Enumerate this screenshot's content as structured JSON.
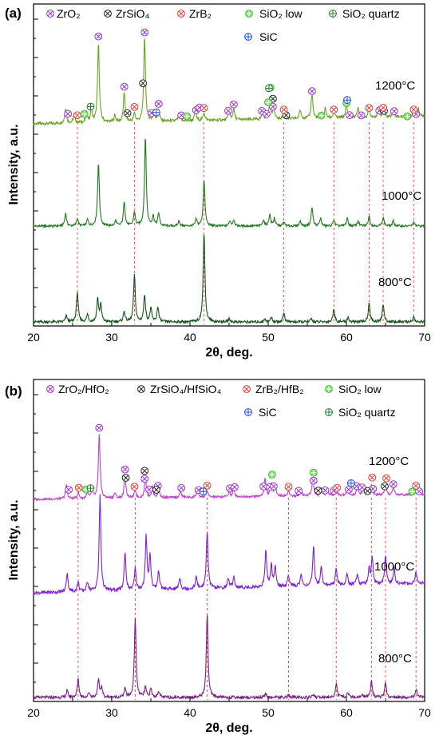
{
  "chart_data": [
    {
      "type": "line",
      "panel_label": "(a)",
      "xlabel": "2θ, deg.",
      "ylabel": "Intensity, a.u.",
      "xlim": [
        20,
        70
      ],
      "xticks": [
        "20",
        "30",
        "40",
        "50",
        "60",
        "70"
      ],
      "grid": false,
      "legend_position": "top",
      "colors": {
        "1200": "#6aa521",
        "1000": "#1f7a1f",
        "800": "#17541a"
      },
      "legend": [
        {
          "symbol": "zro2",
          "label": "ZrO₂"
        },
        {
          "symbol": "zrsio4",
          "label": "ZrSiO₄"
        },
        {
          "symbol": "zrb2",
          "label": "ZrB₂"
        },
        {
          "symbol": "sio2low",
          "label": "SiO₂ low"
        },
        {
          "symbol": "sio2q",
          "label": "SiO₂ quartz"
        },
        {
          "symbol": "sic",
          "label": "SiC"
        }
      ],
      "reference_lines": [
        25.6,
        32.9,
        41.8,
        52.0,
        58.4,
        62.9,
        64.7,
        68.6
      ],
      "series": [
        {
          "name": "1200°C",
          "baseline": 0.0,
          "peaks": [
            [
              24.1,
              0.18
            ],
            [
              25.2,
              0.1
            ],
            [
              26.8,
              0.12
            ],
            [
              27.4,
              0.15
            ],
            [
              28.3,
              0.95
            ],
            [
              30.4,
              0.08
            ],
            [
              31.6,
              0.35
            ],
            [
              32.9,
              0.1
            ],
            [
              34.2,
              1.0
            ],
            [
              35.4,
              0.12
            ],
            [
              36.0,
              0.14
            ],
            [
              38.6,
              0.08
            ],
            [
              40.7,
              0.12
            ],
            [
              41.8,
              0.1
            ],
            [
              45.0,
              0.1
            ],
            [
              45.6,
              0.14
            ],
            [
              49.3,
              0.1
            ],
            [
              50.2,
              0.22
            ],
            [
              50.7,
              0.15
            ],
            [
              52.0,
              0.08
            ],
            [
              54.1,
              0.1
            ],
            [
              55.6,
              0.3
            ],
            [
              57.3,
              0.12
            ],
            [
              58.4,
              0.08
            ],
            [
              60.0,
              0.16
            ],
            [
              61.5,
              0.12
            ],
            [
              62.9,
              0.1
            ],
            [
              64.1,
              0.1
            ],
            [
              64.7,
              0.1
            ],
            [
              66.0,
              0.1
            ],
            [
              68.6,
              0.08
            ],
            [
              69.2,
              0.1
            ]
          ]
        },
        {
          "name": "1000°C",
          "baseline": 0.0,
          "peaks": [
            [
              24.1,
              0.2
            ],
            [
              25.6,
              0.12
            ],
            [
              26.9,
              0.1
            ],
            [
              28.3,
              1.0
            ],
            [
              30.5,
              0.08
            ],
            [
              31.6,
              0.38
            ],
            [
              32.9,
              0.22
            ],
            [
              34.3,
              1.4
            ],
            [
              35.3,
              0.15
            ],
            [
              36.0,
              0.2
            ],
            [
              38.6,
              0.08
            ],
            [
              40.8,
              0.1
            ],
            [
              41.8,
              0.72
            ],
            [
              45.1,
              0.08
            ],
            [
              45.6,
              0.1
            ],
            [
              49.4,
              0.1
            ],
            [
              50.2,
              0.18
            ],
            [
              50.8,
              0.12
            ],
            [
              52.0,
              0.06
            ],
            [
              54.1,
              0.08
            ],
            [
              55.6,
              0.3
            ],
            [
              56.7,
              0.12
            ],
            [
              58.4,
              0.1
            ],
            [
              60.1,
              0.12
            ],
            [
              61.5,
              0.08
            ],
            [
              62.9,
              0.16
            ],
            [
              64.7,
              0.14
            ],
            [
              66.0,
              0.08
            ],
            [
              68.6,
              0.06
            ]
          ]
        },
        {
          "name": "800°C",
          "baseline": 0.0,
          "peaks": [
            [
              24.2,
              0.08
            ],
            [
              25.6,
              0.4
            ],
            [
              26.9,
              0.1
            ],
            [
              28.2,
              0.3
            ],
            [
              28.6,
              0.22
            ],
            [
              31.6,
              0.14
            ],
            [
              32.9,
              0.62
            ],
            [
              34.2,
              0.36
            ],
            [
              35.0,
              0.18
            ],
            [
              35.9,
              0.2
            ],
            [
              41.8,
              1.2
            ],
            [
              45.0,
              0.04
            ],
            [
              49.6,
              0.04
            ],
            [
              50.4,
              0.06
            ],
            [
              52.0,
              0.12
            ],
            [
              55.5,
              0.04
            ],
            [
              58.4,
              0.18
            ],
            [
              60.2,
              0.06
            ],
            [
              62.9,
              0.26
            ],
            [
              64.7,
              0.24
            ],
            [
              68.6,
              0.07
            ]
          ]
        }
      ],
      "markers": [
        {
          "symbol": "zro2",
          "x": [
            24.4,
            28.3,
            31.6,
            34.2,
            35.1,
            36.0,
            38.9,
            40.8,
            41.2,
            44.9,
            45.6,
            49.2,
            49.8,
            50.6,
            55.6,
            60.4,
            61.9,
            64.2,
            66.1,
            68.9
          ]
        },
        {
          "symbol": "zrsio4",
          "x": [
            32.0,
            34.0,
            50.6,
            52.3,
            64.8
          ]
        },
        {
          "symbol": "zrb2",
          "x": [
            25.6,
            32.9,
            41.8,
            52.0,
            58.4,
            62.9,
            64.7,
            68.6
          ]
        },
        {
          "symbol": "sio2low",
          "x": [
            26.5,
            39.6,
            50.0,
            50.3,
            56.8,
            60.0,
            67.8
          ]
        },
        {
          "symbol": "sio2q",
          "x": [
            27.3,
            50.1
          ]
        },
        {
          "symbol": "sic",
          "x": [
            35.7,
            60.1
          ]
        }
      ],
      "curve_labels": [
        "1200°C",
        "1000°C",
        "800°C"
      ]
    },
    {
      "type": "line",
      "panel_label": "(b)",
      "xlabel": "2θ, deg.",
      "ylabel": "Intensity, a.u.",
      "xlim": [
        20,
        70
      ],
      "xticks": [
        "20",
        "30",
        "40",
        "50",
        "60",
        "70"
      ],
      "grid": false,
      "legend_position": "top",
      "colors": {
        "1200": "#c13fd0",
        "1000": "#7c22d8",
        "800": "#7a1f8a"
      },
      "legend": [
        {
          "symbol": "zro2",
          "label": "ZrO₂/HfO₂"
        },
        {
          "symbol": "zrsio4",
          "label": "ZrSiO₄/HfSiO₄"
        },
        {
          "symbol": "zrb2",
          "label": "ZrB₂/HfB₂"
        },
        {
          "symbol": "sio2low",
          "label": "SiO₂ low"
        },
        {
          "symbol": "sic",
          "label": "SiC"
        },
        {
          "symbol": "sio2q",
          "label": "SiO₂ quartz"
        }
      ],
      "reference_lines": [
        25.7,
        33.0,
        42.2,
        52.6,
        58.7,
        63.2,
        65.0,
        68.9
      ],
      "series": [
        {
          "name": "1200°C",
          "baseline": 0.0,
          "peaks": [
            [
              24.2,
              0.22
            ],
            [
              25.7,
              0.1
            ],
            [
              26.9,
              0.1
            ],
            [
              27.5,
              0.12
            ],
            [
              28.4,
              1.0
            ],
            [
              30.4,
              0.08
            ],
            [
              31.7,
              0.35
            ],
            [
              33.0,
              0.12
            ],
            [
              34.3,
              0.32
            ],
            [
              35.2,
              0.18
            ],
            [
              36.0,
              0.14
            ],
            [
              38.8,
              0.1
            ],
            [
              40.9,
              0.1
            ],
            [
              42.2,
              0.1
            ],
            [
              45.0,
              0.08
            ],
            [
              45.6,
              0.12
            ],
            [
              49.6,
              0.28
            ],
            [
              50.4,
              0.2
            ],
            [
              50.9,
              0.18
            ],
            [
              52.6,
              0.08
            ],
            [
              54.2,
              0.1
            ],
            [
              55.7,
              0.28
            ],
            [
              56.8,
              0.12
            ],
            [
              57.6,
              0.1
            ],
            [
              58.7,
              0.1
            ],
            [
              60.1,
              0.12
            ],
            [
              61.4,
              0.14
            ],
            [
              62.1,
              0.1
            ],
            [
              63.2,
              0.16
            ],
            [
              65.0,
              0.14
            ],
            [
              66.0,
              0.12
            ],
            [
              68.9,
              0.1
            ]
          ]
        },
        {
          "name": "1000°C",
          "baseline": 0.0,
          "peaks": [
            [
              24.3,
              0.2
            ],
            [
              25.7,
              0.1
            ],
            [
              26.9,
              0.1
            ],
            [
              28.5,
              1.0
            ],
            [
              31.7,
              0.4
            ],
            [
              33.0,
              0.22
            ],
            [
              34.4,
              0.55
            ],
            [
              34.9,
              0.35
            ],
            [
              36.0,
              0.2
            ],
            [
              38.7,
              0.12
            ],
            [
              40.8,
              0.12
            ],
            [
              42.2,
              0.6
            ],
            [
              44.9,
              0.1
            ],
            [
              45.6,
              0.12
            ],
            [
              49.7,
              0.38
            ],
            [
              50.4,
              0.22
            ],
            [
              50.9,
              0.2
            ],
            [
              52.6,
              0.12
            ],
            [
              54.2,
              0.12
            ],
            [
              55.8,
              0.4
            ],
            [
              56.8,
              0.2
            ],
            [
              58.7,
              0.18
            ],
            [
              60.1,
              0.12
            ],
            [
              61.4,
              0.12
            ],
            [
              62.9,
              0.16
            ],
            [
              63.3,
              0.28
            ],
            [
              65.0,
              0.3
            ],
            [
              66.1,
              0.16
            ],
            [
              68.9,
              0.12
            ]
          ]
        },
        {
          "name": "800°C",
          "baseline": 0.0,
          "peaks": [
            [
              24.3,
              0.08
            ],
            [
              25.7,
              0.22
            ],
            [
              27.1,
              0.06
            ],
            [
              28.3,
              0.2
            ],
            [
              28.7,
              0.12
            ],
            [
              31.7,
              0.1
            ],
            [
              33.0,
              0.95
            ],
            [
              34.3,
              0.12
            ],
            [
              35.0,
              0.1
            ],
            [
              36.0,
              0.08
            ],
            [
              42.2,
              1.0
            ],
            [
              49.7,
              0.04
            ],
            [
              52.6,
              0.03
            ],
            [
              55.8,
              0.04
            ],
            [
              58.7,
              0.17
            ],
            [
              60.2,
              0.06
            ],
            [
              62.0,
              0.04
            ],
            [
              63.2,
              0.2
            ],
            [
              65.0,
              0.17
            ],
            [
              68.9,
              0.1
            ]
          ]
        }
      ],
      "markers": [
        {
          "symbol": "zro2",
          "x": [
            24.5,
            28.4,
            31.7,
            34.2,
            34.8,
            35.9,
            38.9,
            41.1,
            45.1,
            45.7,
            49.4,
            50.2,
            50.7,
            53.9,
            55.8,
            57.3,
            58.4,
            60.3,
            61.3,
            62.0,
            63.4,
            66.0,
            69.3
          ]
        },
        {
          "symbol": "zrsio4",
          "x": [
            31.8,
            34.2,
            35.7,
            56.4,
            62.7,
            64.9
          ]
        },
        {
          "symbol": "zrb2",
          "x": [
            25.8,
            32.9,
            42.2,
            52.6,
            58.8,
            63.3,
            65.1,
            68.9
          ]
        },
        {
          "symbol": "sio2low",
          "x": [
            26.7,
            50.5,
            55.8,
            68.4
          ]
        },
        {
          "symbol": "sio2q",
          "x": [
            27.3
          ]
        },
        {
          "symbol": "sic",
          "x": [
            41.7,
            60.6
          ]
        }
      ],
      "curve_labels": [
        "1200°C",
        "1000°C",
        "800°C"
      ]
    }
  ]
}
